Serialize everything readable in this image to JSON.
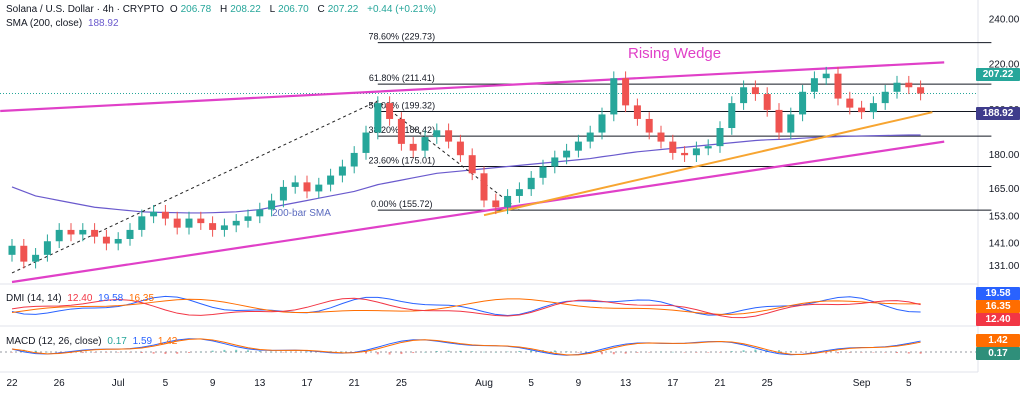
{
  "legend": {
    "symbol": "Solana / U.S. Dollar · 4h · CRYPTO",
    "open_label": "O",
    "open": "206.78",
    "high_label": "H",
    "high": "208.22",
    "low_label": "L",
    "low": "206.70",
    "close_label": "C",
    "close": "207.22",
    "change": "+0.44 (+0.21%)",
    "sma_label": "SMA (200, close)",
    "sma_value": "188.92"
  },
  "dmi_legend": {
    "label": "DMI (14, 14)",
    "v1": "12.40",
    "v2": "19.58",
    "v3": "16.35"
  },
  "macd_legend": {
    "label": "MACD (12, 26, close)",
    "v1": "0.17",
    "v2": "1.59",
    "v3": "1.42"
  },
  "colors": {
    "up": "#26a69a",
    "down": "#ef5350",
    "wedge": "#e040c8",
    "fib": "#131722",
    "support": "#f7a531",
    "sma": "#6a5acd",
    "blue": "#2962ff",
    "orange": "#ff6d00",
    "red": "#f23645",
    "dark": "#131722",
    "grey": "#9598a1"
  },
  "annotations": {
    "wedge_label": "Rising Wedge",
    "sma_label": "200-bar SMA"
  },
  "price_tags": {
    "current": "207.22",
    "sma": "188.92"
  },
  "dmi_tags": [
    "19.58",
    "16.35",
    "12.40"
  ],
  "macd_tags": [
    "1.42",
    "0.17"
  ],
  "chart_data": {
    "type": "candlestick",
    "title": "Solana / U.S. Dollar · 4h · CRYPTO",
    "y_axis_labels": [
      "240.00",
      "220.00",
      "200.00",
      "180.00",
      "165.00",
      "153.00",
      "141.00",
      "131.00"
    ],
    "y_axis_values": [
      240,
      220,
      200,
      180,
      165,
      153,
      141,
      131
    ],
    "x_axis_labels": [
      "22",
      "26",
      "Jul",
      "5",
      "9",
      "13",
      "17",
      "21",
      "25",
      "Aug",
      "5",
      "9",
      "13",
      "17",
      "21",
      "25",
      "Sep",
      "5"
    ],
    "x_axis_index": [
      0,
      4,
      9,
      13,
      17,
      21,
      25,
      29,
      33,
      40,
      44,
      48,
      52,
      56,
      60,
      64,
      72,
      76
    ],
    "ylim": [
      124,
      245
    ],
    "x_count": 78,
    "fib_levels": [
      {
        "label": "0.00% (155.72)",
        "price": 155.72
      },
      {
        "label": "23.60% (175.01)",
        "price": 175.01
      },
      {
        "label": "38.20% (188.42)",
        "price": 188.42
      },
      {
        "label": "50.00% (199.32)",
        "price": 199.32
      },
      {
        "label": "61.80% (211.41)",
        "price": 211.41
      },
      {
        "label": "78.60% (229.73)",
        "price": 229.73
      }
    ],
    "wedge_upper": [
      [
        -1,
        199.5
      ],
      [
        79,
        221
      ]
    ],
    "wedge_lower": [
      [
        0,
        124
      ],
      [
        79,
        186
      ]
    ],
    "support_line": [
      [
        40,
        153.5
      ],
      [
        78,
        199
      ]
    ],
    "pullback_line": [
      [
        0,
        128
      ],
      [
        31,
        204
      ],
      [
        43,
        155.72
      ]
    ],
    "closes": [
      140,
      133,
      136,
      142,
      147,
      145,
      147,
      144,
      141,
      143,
      147,
      153,
      155,
      152,
      148,
      152,
      150,
      147,
      149,
      151,
      153,
      156,
      160,
      166,
      168,
      164,
      167,
      171,
      175,
      181,
      190,
      203,
      196,
      185,
      182,
      188,
      191,
      186,
      180,
      172,
      160,
      157,
      162,
      165,
      170,
      175,
      179,
      182,
      186,
      190,
      198,
      214,
      202,
      196,
      190,
      186,
      181,
      180,
      183,
      184,
      192,
      203,
      210,
      207,
      200,
      190,
      198,
      208,
      214,
      216,
      205,
      201,
      199,
      203,
      208,
      212,
      210,
      207.22
    ],
    "sma": [
      166,
      164,
      162,
      161,
      160,
      159,
      158,
      157,
      156.5,
      156,
      155.5,
      155,
      154.8,
      154.7,
      154.6,
      154.5,
      154.5,
      154.6,
      154.8,
      155,
      155.5,
      156,
      157,
      158,
      159,
      160,
      161,
      162,
      163,
      164,
      165.5,
      167,
      168,
      169,
      170,
      171,
      172,
      172.5,
      173,
      173.5,
      174,
      174.5,
      175,
      175.5,
      176,
      176.5,
      177,
      177.5,
      178,
      178.5,
      179.3,
      180,
      180.8,
      181.5,
      182,
      182.5,
      183,
      183.5,
      184,
      184.5,
      185,
      185.5,
      186,
      186.5,
      186.8,
      187,
      187.2,
      187.5,
      187.8,
      188,
      188.2,
      188.4,
      188.5,
      188.6,
      188.7,
      188.8,
      188.9,
      188.92
    ]
  }
}
